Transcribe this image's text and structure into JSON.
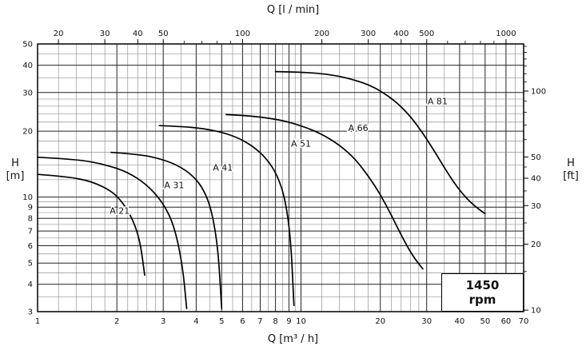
{
  "chart_data": {
    "type": "line",
    "scale": "log-log",
    "title": "",
    "axes": {
      "top": {
        "title": "Q [l / min]",
        "ticks": [
          20,
          30,
          40,
          50,
          100,
          200,
          300,
          400,
          500,
          1000
        ],
        "minor_ticks": [
          60,
          70,
          80,
          90,
          600,
          700,
          800,
          900
        ],
        "unit_per_m3h": 16.6667
      },
      "bottom": {
        "title": "Q [m³ / h]",
        "ticks": [
          1,
          2,
          3,
          4,
          5,
          6,
          7,
          8,
          9,
          10,
          20,
          30,
          40,
          50,
          60,
          70
        ],
        "range": [
          1,
          70
        ]
      },
      "left": {
        "title_line1": "H",
        "title_line2": "[m]",
        "ticks": [
          3,
          4,
          5,
          6,
          7,
          8,
          9,
          10,
          20,
          30,
          40,
          50
        ],
        "range": [
          3,
          50
        ]
      },
      "right": {
        "title_line1": "H",
        "title_line2": "[ft]",
        "ticks": [
          10,
          20,
          30,
          40,
          50,
          100
        ],
        "minor_ticks": [
          15,
          25,
          35,
          45,
          60,
          70,
          80,
          90,
          110,
          120,
          130,
          140,
          150,
          160
        ],
        "ft_per_m": 3.2808
      }
    },
    "grid": {
      "x_values": [
        1,
        1.2,
        1.4,
        1.6,
        1.8,
        2,
        2.2,
        2.4,
        2.6,
        2.8,
        3,
        3.5,
        4,
        4.5,
        5,
        5.5,
        6,
        6.5,
        7,
        7.5,
        8,
        8.5,
        9,
        9.5,
        10,
        12,
        14,
        16,
        18,
        20,
        22,
        24,
        26,
        28,
        30,
        35,
        40,
        45,
        50,
        55,
        60,
        65,
        70
      ],
      "x_major": [
        1,
        2,
        3,
        4,
        5,
        6,
        7,
        8,
        9,
        10,
        20,
        30,
        40,
        50,
        60,
        70
      ],
      "y_values": [
        3,
        3.5,
        4,
        4.5,
        5,
        5.5,
        6,
        6.5,
        7,
        7.5,
        8,
        8.5,
        9,
        9.5,
        10,
        12,
        14,
        16,
        18,
        20,
        22,
        24,
        26,
        28,
        30,
        35,
        40,
        45,
        50
      ],
      "y_major": [
        3,
        4,
        5,
        6,
        7,
        8,
        9,
        10,
        20,
        30,
        40,
        50
      ]
    },
    "series": [
      {
        "name": "A 21",
        "label_at": [
          2.05,
          8.4
        ],
        "points": [
          [
            1,
            12.7
          ],
          [
            1.3,
            12.4
          ],
          [
            1.6,
            11.8
          ],
          [
            1.9,
            10.7
          ],
          [
            2.1,
            9.5
          ],
          [
            2.3,
            7.9
          ],
          [
            2.45,
            6.3
          ],
          [
            2.55,
            4.4
          ]
        ]
      },
      {
        "name": "A 31",
        "label_at": [
          3.3,
          11
        ],
        "points": [
          [
            1,
            15.2
          ],
          [
            1.4,
            14.9
          ],
          [
            1.8,
            14.1
          ],
          [
            2.2,
            13
          ],
          [
            2.6,
            11.4
          ],
          [
            3,
            9.4
          ],
          [
            3.3,
            7.4
          ],
          [
            3.55,
            4.9
          ],
          [
            3.68,
            3.1
          ]
        ]
      },
      {
        "name": "A 41",
        "label_at": [
          5.05,
          13.2
        ],
        "points": [
          [
            1.9,
            16
          ],
          [
            2.4,
            15.7
          ],
          [
            2.9,
            15
          ],
          [
            3.4,
            14
          ],
          [
            3.9,
            12.5
          ],
          [
            4.3,
            10.7
          ],
          [
            4.6,
            8.5
          ],
          [
            4.85,
            5.7
          ],
          [
            5,
            3.1
          ]
        ]
      },
      {
        "name": "A 51",
        "label_at": [
          10,
          17
        ],
        "points": [
          [
            2.9,
            21.2
          ],
          [
            3.5,
            21
          ],
          [
            4.2,
            20.6
          ],
          [
            5,
            19.8
          ],
          [
            5.8,
            18.6
          ],
          [
            6.6,
            17
          ],
          [
            7.4,
            15
          ],
          [
            8.1,
            12.7
          ],
          [
            8.7,
            9.9
          ],
          [
            9.15,
            6.4
          ],
          [
            9.4,
            3.2
          ]
        ]
      },
      {
        "name": "A 66",
        "label_at": [
          16.5,
          20
        ],
        "points": [
          [
            5.2,
            23.8
          ],
          [
            6,
            23.6
          ],
          [
            7,
            23.2
          ],
          [
            8.5,
            22.4
          ],
          [
            10,
            21.2
          ],
          [
            12,
            19.4
          ],
          [
            14,
            17.3
          ],
          [
            16,
            15
          ],
          [
            18,
            12.5
          ],
          [
            20,
            10.3
          ],
          [
            22,
            8.3
          ],
          [
            24,
            6.7
          ],
          [
            26.5,
            5.4
          ],
          [
            29,
            4.7
          ]
        ]
      },
      {
        "name": "A 81",
        "label_at": [
          33,
          26.5
        ],
        "points": [
          [
            8,
            37.4
          ],
          [
            10,
            37.2
          ],
          [
            12,
            36.6
          ],
          [
            14,
            35.6
          ],
          [
            16,
            34.2
          ],
          [
            18,
            32.6
          ],
          [
            20,
            30.6
          ],
          [
            23,
            27.2
          ],
          [
            26,
            23.4
          ],
          [
            29,
            19.6
          ],
          [
            32,
            16.3
          ],
          [
            36,
            12.9
          ],
          [
            40,
            10.7
          ],
          [
            45,
            9.2
          ],
          [
            50,
            8.4
          ]
        ]
      }
    ],
    "annotation": {
      "line1": "1450",
      "line2": "rpm"
    }
  }
}
